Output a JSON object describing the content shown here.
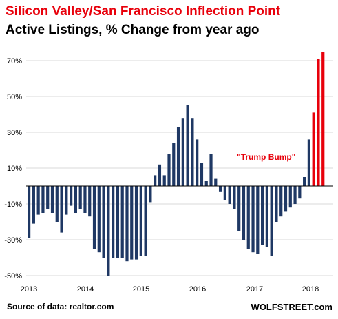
{
  "chart_data": {
    "type": "bar",
    "title": "Silicon Valley/San Francisco Inflection Point",
    "subtitle": "Active Listings, % Change from year ago",
    "annotation": "\"Trump Bump\"",
    "source": "Source of data: realtor.com",
    "brand": "WOLFSTREET.com",
    "ylim": [
      -50,
      75
    ],
    "y_ticks": [
      70,
      50,
      30,
      10,
      -10,
      -30,
      -50
    ],
    "y_tick_labels": [
      "70%",
      "50%",
      "30%",
      "10%",
      "-10%",
      "-30%",
      "-50%"
    ],
    "x_labels": [
      "2013",
      "2014",
      "2015",
      "2016",
      "2017",
      "2018"
    ],
    "colors": {
      "base": "#1f3864",
      "highlight": "#e8000b"
    },
    "values": [
      -29,
      -21,
      -16,
      -15,
      -13,
      -15,
      -20,
      -26,
      -16,
      -11,
      -15,
      -13,
      -15,
      -17,
      -35,
      -37,
      -40,
      -50,
      -40,
      -40,
      -40,
      -42,
      -41,
      -41,
      -39,
      -39,
      -9,
      6,
      12,
      6,
      18,
      24,
      33,
      38,
      45,
      38,
      26,
      13,
      3,
      18,
      4,
      -3,
      -8,
      -10,
      -13,
      -25,
      -30,
      -35,
      -37,
      -38,
      -33,
      -34,
      -39,
      -20,
      -17,
      -14,
      -12,
      -10,
      -7,
      5,
      26,
      41,
      71,
      75
    ],
    "highlight_from_index": 61
  }
}
